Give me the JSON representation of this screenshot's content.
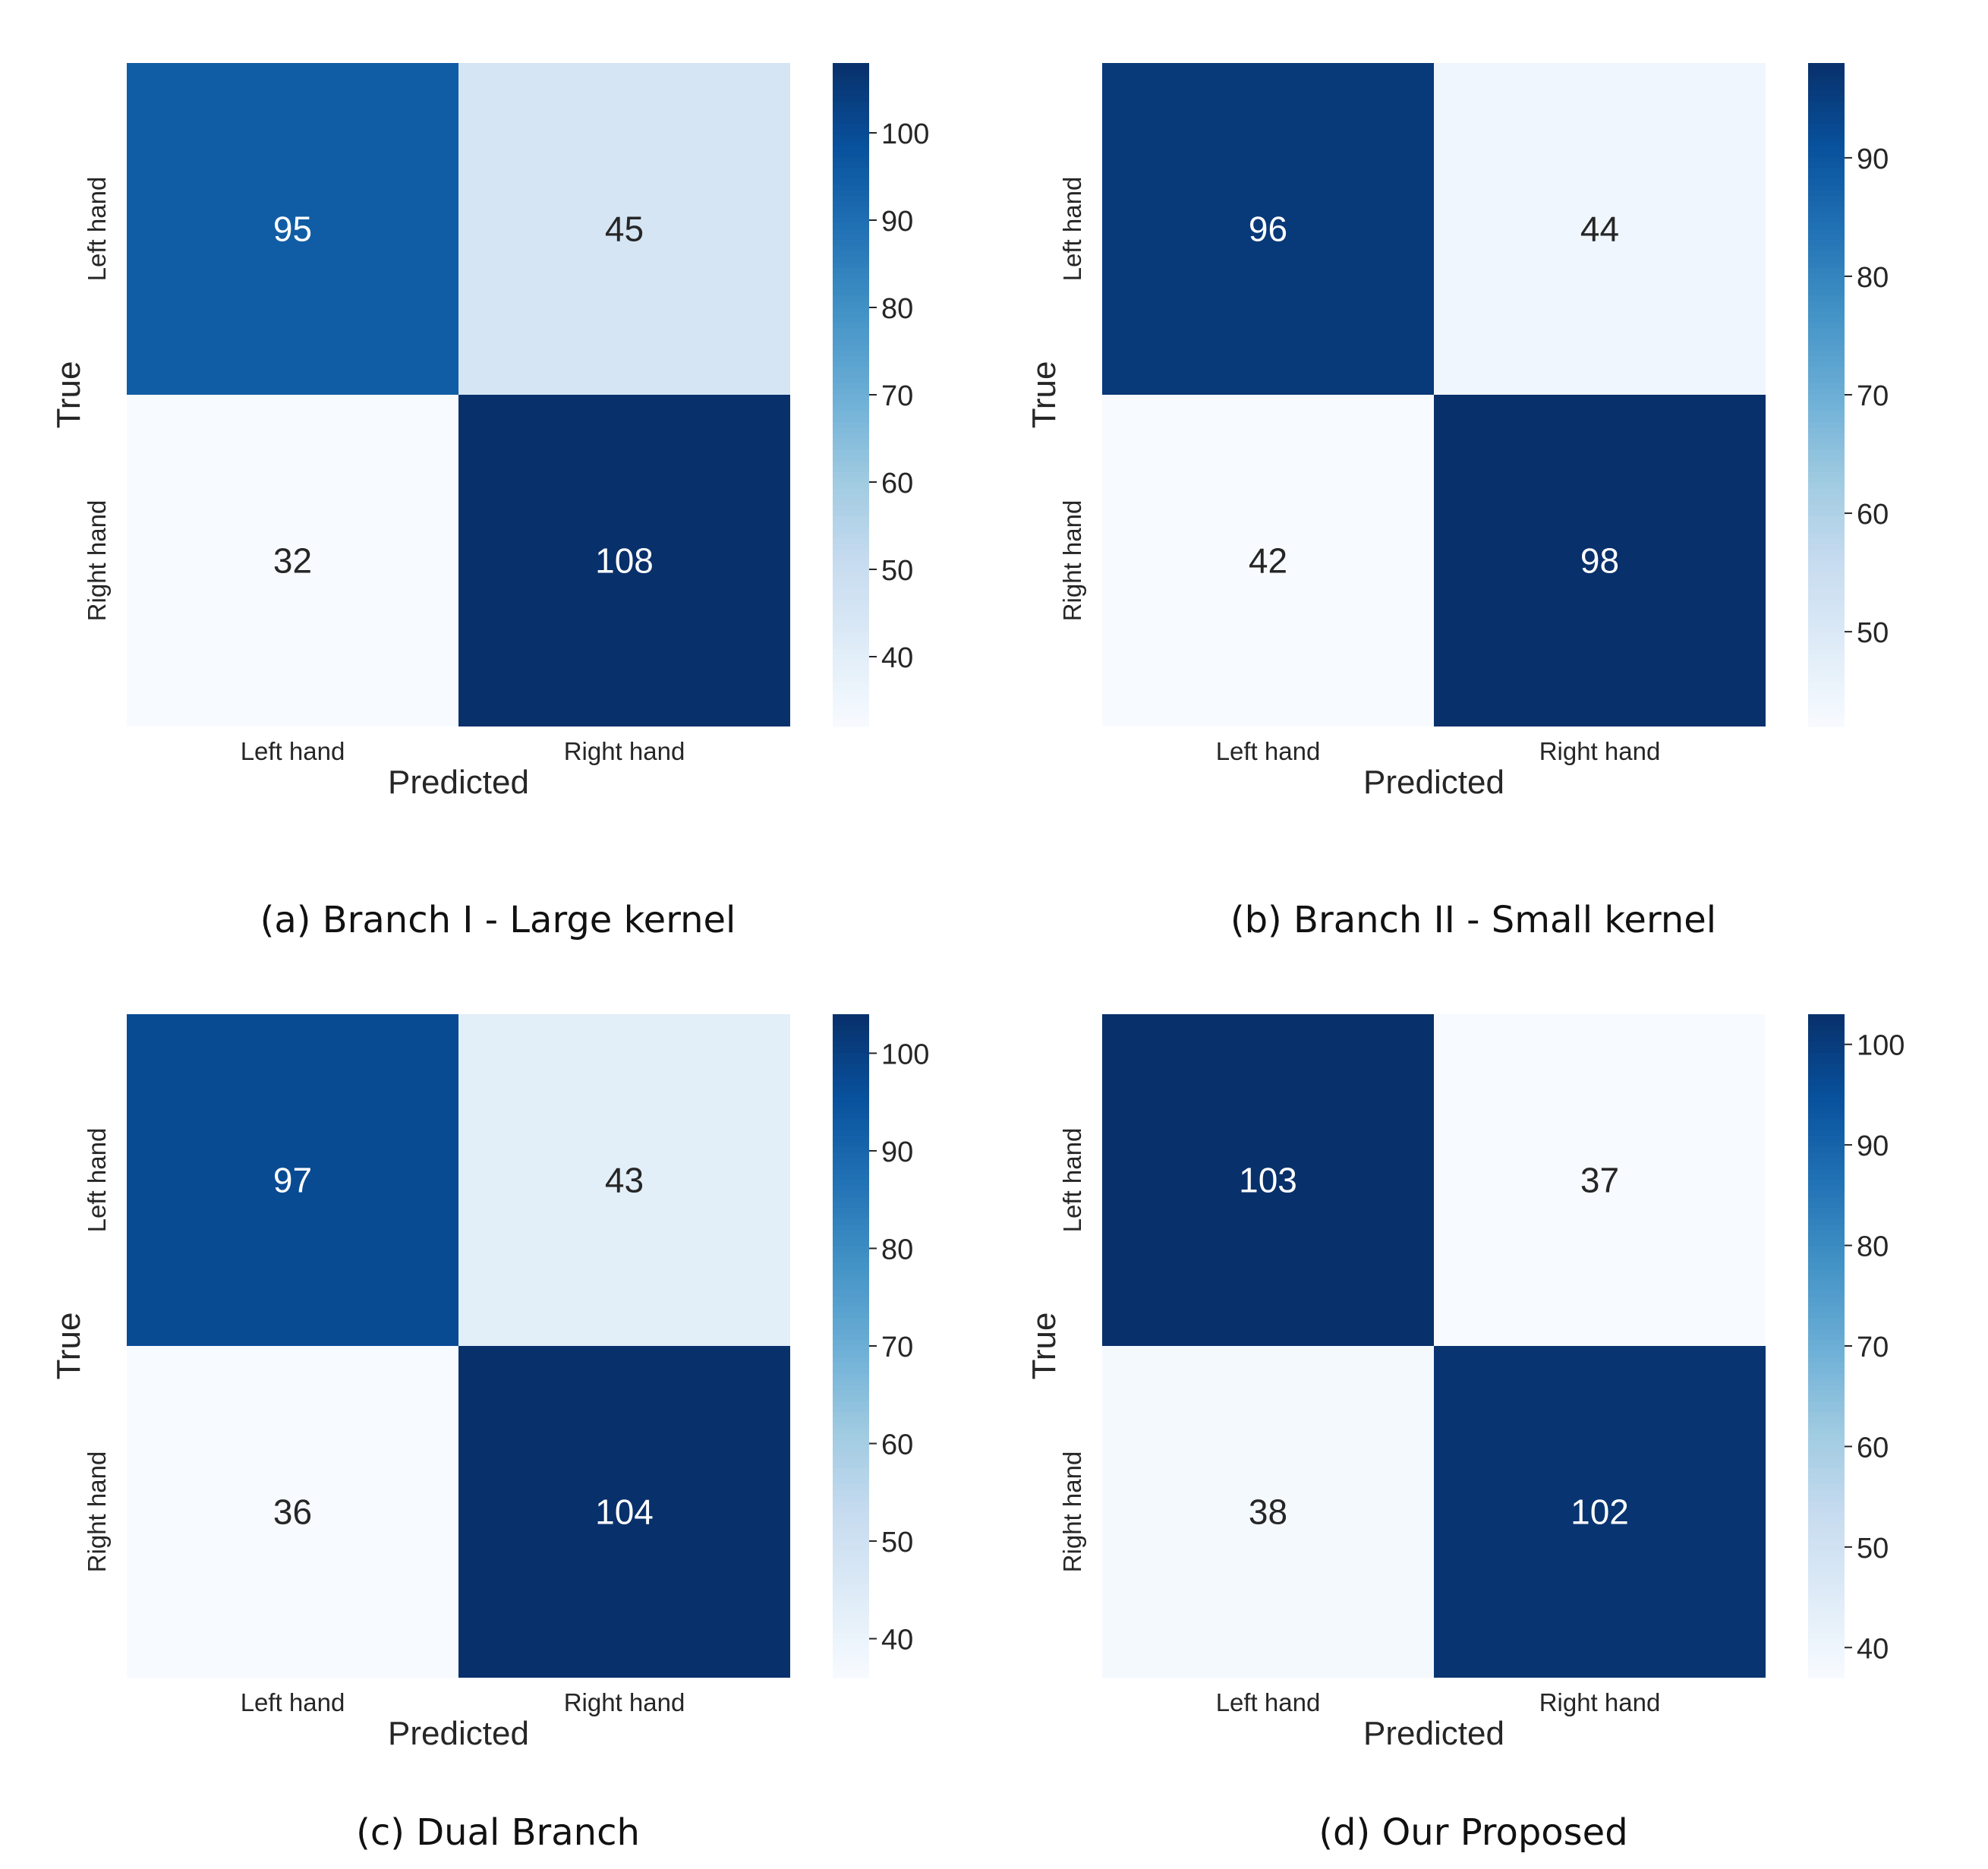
{
  "chart_data": [
    {
      "type": "heatmap",
      "caption": "(a) Branch I - Large kernel",
      "xlabel": "Predicted",
      "ylabel": "True",
      "x_categories": [
        "Left hand",
        "Right hand"
      ],
      "y_categories": [
        "Left hand",
        "Right hand"
      ],
      "values": [
        [
          95,
          45
        ],
        [
          32,
          108
        ]
      ],
      "colorbar": {
        "min": 32,
        "max": 108,
        "ticks": [
          40,
          50,
          60,
          70,
          80,
          90,
          100
        ]
      },
      "colormap": "Blues"
    },
    {
      "type": "heatmap",
      "caption": "(b) Branch II - Small kernel",
      "xlabel": "Predicted",
      "ylabel": "True",
      "x_categories": [
        "Left hand",
        "Right hand"
      ],
      "y_categories": [
        "Left hand",
        "Right hand"
      ],
      "values": [
        [
          96,
          44
        ],
        [
          42,
          98
        ]
      ],
      "colorbar": {
        "min": 42,
        "max": 98,
        "ticks": [
          50,
          60,
          70,
          80,
          90
        ]
      },
      "colormap": "Blues"
    },
    {
      "type": "heatmap",
      "caption": "(c) Dual Branch",
      "xlabel": "Predicted",
      "ylabel": "True",
      "x_categories": [
        "Left hand",
        "Right hand"
      ],
      "y_categories": [
        "Left hand",
        "Right hand"
      ],
      "values": [
        [
          97,
          43
        ],
        [
          36,
          104
        ]
      ],
      "colorbar": {
        "min": 36,
        "max": 104,
        "ticks": [
          40,
          50,
          60,
          70,
          80,
          90,
          100
        ]
      },
      "colormap": "Blues"
    },
    {
      "type": "heatmap",
      "caption": "(d) Our Proposed",
      "xlabel": "Predicted",
      "ylabel": "True",
      "x_categories": [
        "Left hand",
        "Right hand"
      ],
      "y_categories": [
        "Left hand",
        "Right hand"
      ],
      "values": [
        [
          103,
          37
        ],
        [
          38,
          102
        ]
      ],
      "colorbar": {
        "min": 37,
        "max": 103,
        "ticks": [
          40,
          50,
          60,
          70,
          80,
          90,
          100
        ]
      },
      "colormap": "Blues"
    }
  ]
}
